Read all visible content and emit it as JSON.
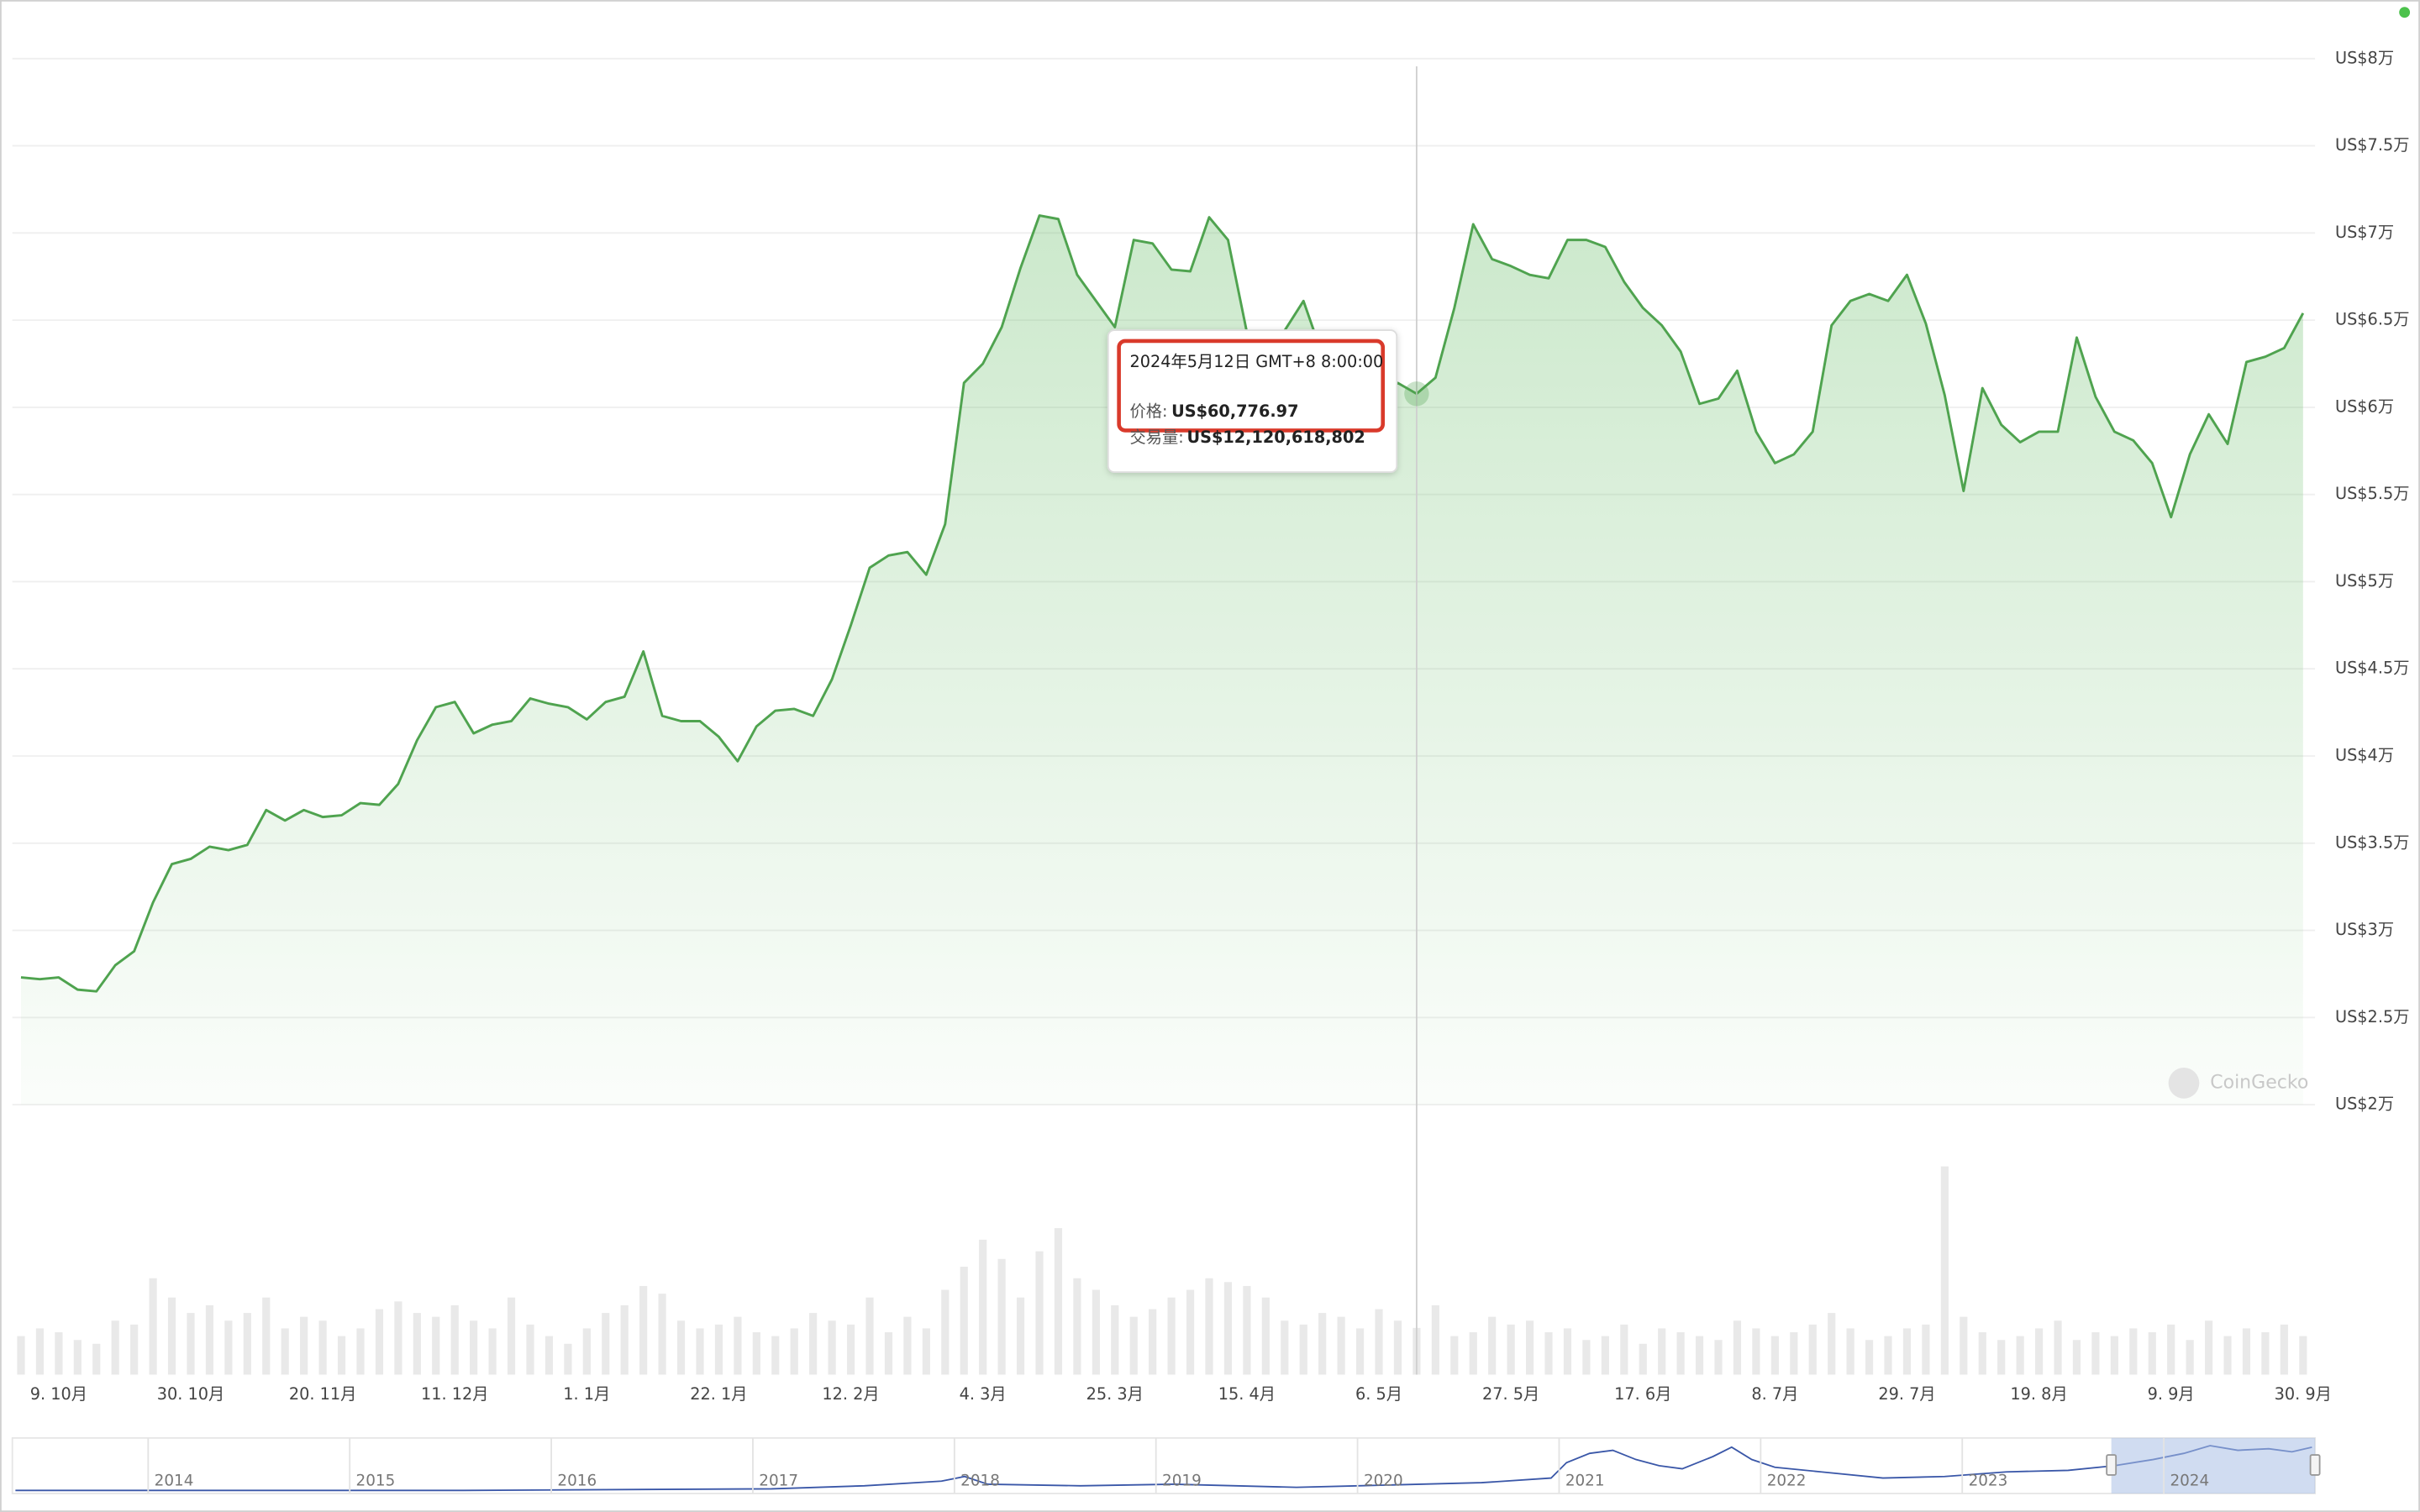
{
  "chart_data": {
    "type": "line",
    "x": [
      "3. 10月",
      "6. 10月",
      "9. 10月",
      "12. 10月",
      "15. 10月",
      "18. 10月",
      "21. 10月",
      "24. 10月",
      "27. 10月",
      "30. 10月",
      "2. 11月",
      "5. 11月",
      "8. 11月",
      "11. 11月",
      "14. 11月",
      "17. 11月",
      "20. 11月",
      "23. 11月",
      "26. 11月",
      "29. 11月",
      "2. 12月",
      "5. 12月",
      "8. 12月",
      "11. 12月",
      "14. 12月",
      "17. 12月",
      "20. 12月",
      "23. 12月",
      "26. 12月",
      "29. 12月",
      "1. 1月",
      "4. 1月",
      "7. 1月",
      "10. 1月",
      "13. 1月",
      "16. 1月",
      "19. 1月",
      "22. 1月",
      "25. 1月",
      "28. 1月",
      "31. 1月",
      "3. 2月",
      "6. 2月",
      "9. 2月",
      "12. 2月",
      "15. 2月",
      "18. 2月",
      "21. 2月",
      "24. 2月",
      "27. 2月",
      "1. 3月",
      "4. 3月",
      "7. 3月",
      "10. 3月",
      "13. 3月",
      "16. 3月",
      "19. 3月",
      "22. 3月",
      "25. 3月",
      "28. 3月",
      "31. 3月",
      "3. 4月",
      "6. 4月",
      "9. 4月",
      "12. 4月",
      "15. 4月",
      "18. 4月",
      "21. 4月",
      "24. 4月",
      "27. 4月",
      "30. 4月",
      "3. 5月",
      "6. 5月",
      "9. 5月",
      "12. 5月",
      "15. 5月",
      "18. 5月",
      "21. 5月",
      "24. 5月",
      "27. 5月",
      "30. 5月",
      "2. 6月",
      "5. 6月",
      "8. 6月",
      "11. 6月",
      "14. 6月",
      "17. 6月",
      "20. 6月",
      "23. 6月",
      "26. 6月",
      "29. 6月",
      "2. 7月",
      "5. 7月",
      "8. 7月",
      "11. 7月",
      "14. 7月",
      "17. 7月",
      "20. 7月",
      "23. 7月",
      "26. 7月",
      "29. 7月",
      "1. 8月",
      "4. 8月",
      "7. 8月",
      "10. 8月",
      "13. 8月",
      "16. 8月",
      "19. 8月",
      "22. 8月",
      "25. 8月",
      "28. 8月",
      "31. 8月",
      "3. 9月",
      "6. 9月",
      "9. 9月",
      "12. 9月",
      "15. 9月",
      "18. 9月",
      "21. 9月",
      "24. 9月",
      "27. 9月",
      "30. 9月"
    ],
    "xticks": [
      "9. 10月",
      "30. 10月",
      "20. 11月",
      "11. 12月",
      "1. 1月",
      "22. 1月",
      "12. 2月",
      "4. 3月",
      "25. 3月",
      "15. 4月",
      "6. 5月",
      "27. 5月",
      "17. 6月",
      "8. 7月",
      "29. 7月",
      "19. 8月",
      "9. 9月",
      "30. 9月"
    ],
    "series": [
      {
        "color": "#4fa34f",
        "values": [
          27300,
          27200,
          27300,
          26600,
          26500,
          28000,
          28800,
          31600,
          33800,
          34100,
          34800,
          34600,
          34900,
          36900,
          36300,
          36900,
          36500,
          36600,
          37300,
          37200,
          38400,
          40900,
          42800,
          43100,
          41300,
          41800,
          42000,
          43300,
          43000,
          42800,
          42100,
          43100,
          43400,
          46000,
          42300,
          42000,
          42000,
          41100,
          39700,
          41700,
          42600,
          42700,
          42300,
          44400,
          47500,
          50800,
          51500,
          51700,
          50400,
          53300,
          61400,
          62500,
          64600,
          68000,
          71000,
          70800,
          67600,
          66100,
          64600,
          69600,
          69400,
          67900,
          67800,
          70900,
          69600,
          64300,
          63200,
          64400,
          66100,
          63000,
          61800,
          60900,
          60700,
          61400,
          60776.97,
          61700,
          65700,
          70500,
          68500,
          68100,
          67600,
          67400,
          69600,
          69600,
          69200,
          67200,
          65700,
          64700,
          63200,
          60200,
          60500,
          62100,
          58600,
          56800,
          57300,
          58600,
          64700,
          66100,
          66500,
          66100,
          67600,
          64800,
          60700,
          55200,
          61100,
          59000,
          58000,
          58600,
          58600,
          64000,
          60600,
          58600,
          58100,
          56800,
          53700,
          57300,
          59600,
          57900,
          62600,
          62900,
          63400,
          65400
        ]
      },
      {
        "color": "#e9e9e9",
        "axis": "y2",
        "values": [
          10000000000,
          12000000000,
          11000000000,
          9000000000,
          8000000000,
          14000000000,
          13000000000,
          25000000000,
          20000000000,
          16000000000,
          18000000000,
          14000000000,
          16000000000,
          20000000000,
          12000000000,
          15000000000,
          14000000000,
          10000000000,
          12000000000,
          17000000000,
          19000000000,
          16000000000,
          15000000000,
          18000000000,
          14000000000,
          12000000000,
          20000000000,
          13000000000,
          10000000000,
          8000000000,
          12000000000,
          16000000000,
          18000000000,
          23000000000,
          21000000000,
          14000000000,
          12000000000,
          13000000000,
          15000000000,
          11000000000,
          10000000000,
          12000000000,
          16000000000,
          14000000000,
          13000000000,
          20000000000,
          11000000000,
          15000000000,
          12000000000,
          22000000000,
          28000000000,
          35000000000,
          30000000000,
          20000000000,
          32000000000,
          38000000000,
          25000000000,
          22000000000,
          18000000000,
          15000000000,
          17000000000,
          20000000000,
          22000000000,
          25000000000,
          24000000000,
          23000000000,
          20000000000,
          14000000000,
          13000000000,
          16000000000,
          15000000000,
          12000000000,
          17000000000,
          14000000000,
          12120618802,
          18000000000,
          10000000000,
          11000000000,
          15000000000,
          13000000000,
          14000000000,
          11000000000,
          12000000000,
          9000000000,
          10000000000,
          13000000000,
          8000000000,
          12000000000,
          11000000000,
          10000000000,
          9000000000,
          14000000000,
          12000000000,
          10000000000,
          11000000000,
          13000000000,
          16000000000,
          12000000000,
          9000000000,
          10000000000,
          12000000000,
          13000000000,
          54000000000,
          15000000000,
          11000000000,
          9000000000,
          10000000000,
          12000000000,
          14000000000,
          9000000000,
          11000000000,
          10000000000,
          12000000000,
          11000000000,
          13000000000,
          9000000000,
          14000000000,
          10000000000,
          12000000000,
          11000000000,
          13000000000,
          10000000000
        ]
      }
    ],
    "ylim": [
      20000,
      80000
    ],
    "yticks": [
      {
        "value": 20000,
        "label": "US$2万"
      },
      {
        "value": 25000,
        "label": "US$2.5万"
      },
      {
        "value": 30000,
        "label": "US$3万"
      },
      {
        "value": 35000,
        "label": "US$3.5万"
      },
      {
        "value": 40000,
        "label": "US$4万"
      },
      {
        "value": 45000,
        "label": "US$4.5万"
      },
      {
        "value": 50000,
        "label": "US$5万"
      },
      {
        "value": 55000,
        "label": "US$5.5万"
      },
      {
        "value": 60000,
        "label": "US$6万"
      },
      {
        "value": 65000,
        "label": "US$6.5万"
      },
      {
        "value": 70000,
        "label": "US$7万"
      },
      {
        "value": 75000,
        "label": "US$7.5万"
      },
      {
        "value": 80000,
        "label": "US$8万"
      }
    ],
    "y2lim": [
      0,
      56000000000
    ],
    "grid": true,
    "tooltip": {
      "date": "2024年5月12日 GMT+8 8:00:00",
      "price_label": "价格:",
      "price": "US$60,776.97",
      "volume_label": "交易量:",
      "volume": "US$12,120,618,802"
    },
    "watermark": "CoinGecko",
    "navigator_labels": [
      "2014",
      "2015",
      "2016",
      "2017",
      "2018",
      "2019",
      "2020",
      "2021",
      "2022",
      "2023",
      "2024"
    ]
  }
}
